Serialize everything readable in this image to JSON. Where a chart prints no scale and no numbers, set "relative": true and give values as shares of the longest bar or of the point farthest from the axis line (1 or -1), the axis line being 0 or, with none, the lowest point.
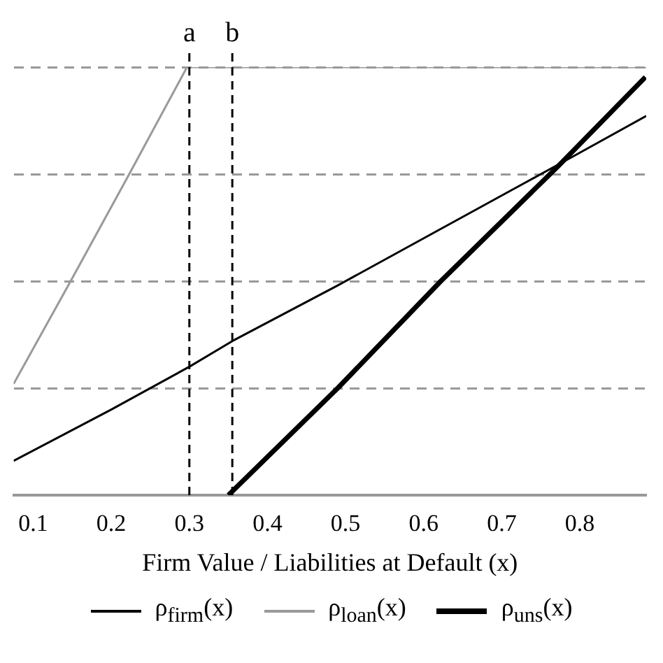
{
  "chart_data": {
    "type": "line",
    "relative": true,
    "xlabel": "Firm Value / Liabilities at Default (x)",
    "xlim": [
      0.075,
      0.885
    ],
    "xticks": [
      0.1,
      0.2,
      0.3,
      0.4,
      0.5,
      0.6,
      0.7,
      0.8
    ],
    "grid": "y",
    "legend": "bottom",
    "marker": "none",
    "series": [
      {
        "name": "ρ$_{firm}$(x)",
        "color": "#000000",
        "x": [
          0.075,
          0.2,
          0.3,
          0.355,
          0.49,
          0.6,
          0.716,
          0.79,
          0.885
        ],
        "values": [
          0.08,
          0.2,
          0.3,
          0.36,
          0.49,
          0.6,
          0.716,
          0.79,
          0.886
        ]
      },
      {
        "name": "ρ$_{loan}$(x)",
        "color": "#999999",
        "x": [
          0.075,
          0.148,
          0.223,
          0.297,
          0.885
        ],
        "values": [
          0.26,
          0.5,
          0.75,
          1,
          1
        ]
      },
      {
        "name": "ρ$_{uns}$(x)",
        "color": "#000000",
        "x": [
          0.35,
          0.49,
          0.622,
          0.773,
          0.884
        ],
        "values": [
          0,
          0.25,
          0.5,
          0.77,
          0.977
        ]
      }
    ],
    "ref_lines": [
      {
        "axis": "x",
        "value": 0.3,
        "label": "a",
        "color": "#000000",
        "line_style": "dashed"
      },
      {
        "axis": "x",
        "value": 0.355,
        "label": "b",
        "color": "#000000",
        "line_style": "dashed"
      }
    ]
  }
}
